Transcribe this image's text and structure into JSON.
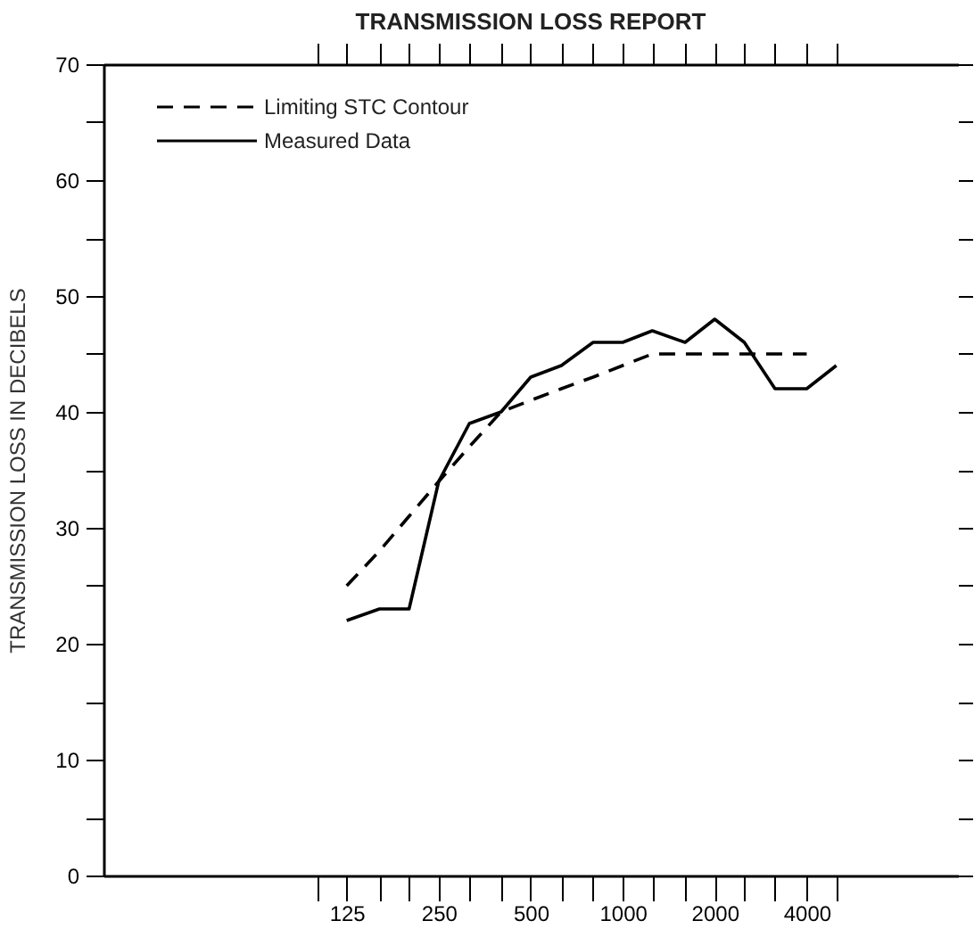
{
  "chart_data": {
    "type": "line",
    "title": "TRANSMISSION LOSS REPORT",
    "ylabel": "TRANSMISSION LOSS IN DECIBELS",
    "log": "x",
    "grid": false,
    "legend": "top left",
    "marker": "none",
    "xlim": [
      20,
      12500
    ],
    "ylim": [
      0,
      70
    ],
    "xticks": [
      {
        "value": 100,
        "label": null
      },
      125,
      {
        "value": 160,
        "label": null
      },
      {
        "value": 200,
        "label": null
      },
      250,
      {
        "value": 315,
        "label": null
      },
      {
        "value": 400,
        "label": null
      },
      500,
      {
        "value": 630,
        "label": null
      },
      {
        "value": 800,
        "label": null
      },
      1000,
      {
        "value": 1250,
        "label": null
      },
      {
        "value": 1600,
        "label": null
      },
      2000,
      {
        "value": 2500,
        "label": null
      },
      {
        "value": 3150,
        "label": null
      },
      4000,
      {
        "value": 5000,
        "label": null
      }
    ],
    "yticks": [
      0,
      {
        "value": 5,
        "label": null
      },
      10,
      {
        "value": 15,
        "label": null
      },
      20,
      {
        "value": 25,
        "label": null
      },
      30,
      {
        "value": 35,
        "label": null
      },
      40,
      {
        "value": 45,
        "label": null
      },
      50,
      {
        "value": 55,
        "label": null
      },
      60,
      {
        "value": 65,
        "label": null
      },
      70
    ],
    "series": [
      {
        "name": "Limiting STC Contour",
        "color": "#000000",
        "line_style": "dashed",
        "x": [
          125,
          160,
          200,
          250,
          315,
          400,
          500,
          630,
          800,
          1000,
          1250,
          1600,
          2000,
          2500,
          3150,
          4000
        ],
        "values": [
          25,
          28,
          31,
          34,
          37,
          40,
          41,
          42,
          43,
          44,
          45,
          45,
          45,
          45,
          45,
          45
        ]
      },
      {
        "name": "Measured Data",
        "color": "#000000",
        "line_style": "solid",
        "x": [
          125,
          160,
          200,
          250,
          315,
          400,
          500,
          630,
          800,
          1000,
          1250,
          1600,
          2000,
          2500,
          3150,
          4000,
          5000
        ],
        "values": [
          22,
          23,
          23,
          34,
          39,
          40,
          43,
          44,
          46,
          46,
          47,
          46,
          48,
          46,
          42,
          42,
          44
        ]
      }
    ]
  }
}
